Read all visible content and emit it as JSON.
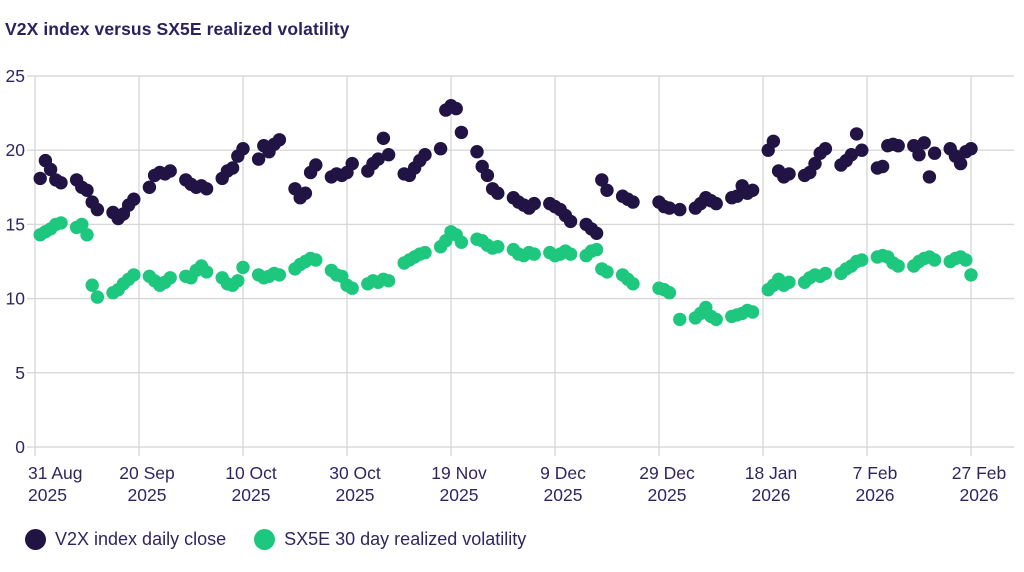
{
  "header": {
    "title": "V2X index versus SX5E realized volatility"
  },
  "legend": {
    "items": [
      {
        "label": "V2X index daily close",
        "color": "#211445"
      },
      {
        "label": "SX5E 30 day realized volatility",
        "color": "#1dc77d"
      }
    ]
  },
  "colors": {
    "background": "#ffffff",
    "text": "#2e2663",
    "grid": "#d8d8d8",
    "navy": "#211445",
    "green": "#1dc77d"
  },
  "chart_data": {
    "type": "scatter",
    "title": "V2X index versus SX5E realized volatility",
    "xlabel": "",
    "ylabel": "",
    "x_unit": "days since 31 Aug 2025 (points are trading days)",
    "ylim": [
      0,
      25
    ],
    "yticks": [
      0,
      5,
      10,
      15,
      20,
      25
    ],
    "grid": true,
    "legend_position": "bottom",
    "xticks": [
      {
        "day": 0,
        "line1": "31 Aug",
        "line2": "2025"
      },
      {
        "day": 20,
        "line1": "20 Sep",
        "line2": "2025"
      },
      {
        "day": 40,
        "line1": "10 Oct",
        "line2": "2025"
      },
      {
        "day": 60,
        "line1": "30 Oct",
        "line2": "2025"
      },
      {
        "day": 80,
        "line1": "19 Nov",
        "line2": "2025"
      },
      {
        "day": 100,
        "line1": "9 Dec",
        "line2": "2025"
      },
      {
        "day": 120,
        "line1": "29 Dec",
        "line2": "2025"
      },
      {
        "day": 140,
        "line1": "18 Jan",
        "line2": "2026"
      },
      {
        "day": 160,
        "line1": "7 Feb",
        "line2": "2026"
      },
      {
        "day": 180,
        "line1": "27 Feb",
        "line2": "2026"
      }
    ],
    "series": [
      {
        "name": "V2X index daily close",
        "color": "#211445",
        "points": [
          [
            1,
            18.1
          ],
          [
            2,
            19.3
          ],
          [
            3,
            18.7
          ],
          [
            4,
            18.0
          ],
          [
            5,
            17.8
          ],
          [
            8,
            18.0
          ],
          [
            9,
            17.5
          ],
          [
            10,
            17.3
          ],
          [
            11,
            16.5
          ],
          [
            12,
            16.0
          ],
          [
            15,
            15.8
          ],
          [
            16,
            15.4
          ],
          [
            17,
            15.7
          ],
          [
            18,
            16.3
          ],
          [
            19,
            16.7
          ],
          [
            22,
            17.5
          ],
          [
            23,
            18.3
          ],
          [
            24,
            18.5
          ],
          [
            25,
            18.4
          ],
          [
            26,
            18.6
          ],
          [
            29,
            18.0
          ],
          [
            30,
            17.7
          ],
          [
            31,
            17.5
          ],
          [
            32,
            17.6
          ],
          [
            33,
            17.4
          ],
          [
            36,
            18.1
          ],
          [
            37,
            18.6
          ],
          [
            38,
            18.8
          ],
          [
            39,
            19.6
          ],
          [
            40,
            20.1
          ],
          [
            43,
            19.4
          ],
          [
            44,
            20.3
          ],
          [
            45,
            19.9
          ],
          [
            46,
            20.4
          ],
          [
            47,
            20.7
          ],
          [
            50,
            17.4
          ],
          [
            51,
            16.8
          ],
          [
            52,
            17.1
          ],
          [
            53,
            18.5
          ],
          [
            54,
            19.0
          ],
          [
            57,
            18.2
          ],
          [
            58,
            18.4
          ],
          [
            59,
            18.3
          ],
          [
            60,
            18.5
          ],
          [
            61,
            19.1
          ],
          [
            64,
            18.6
          ],
          [
            65,
            19.1
          ],
          [
            66,
            19.4
          ],
          [
            67,
            20.8
          ],
          [
            68,
            19.7
          ],
          [
            71,
            18.4
          ],
          [
            72,
            18.3
          ],
          [
            73,
            18.8
          ],
          [
            74,
            19.3
          ],
          [
            75,
            19.7
          ],
          [
            78,
            20.1
          ],
          [
            79,
            22.7
          ],
          [
            80,
            23.0
          ],
          [
            81,
            22.8
          ],
          [
            82,
            21.2
          ],
          [
            85,
            19.9
          ],
          [
            86,
            18.9
          ],
          [
            87,
            18.3
          ],
          [
            88,
            17.4
          ],
          [
            89,
            17.1
          ],
          [
            92,
            16.8
          ],
          [
            93,
            16.5
          ],
          [
            94,
            16.3
          ],
          [
            95,
            16.1
          ],
          [
            96,
            16.4
          ],
          [
            99,
            16.4
          ],
          [
            100,
            16.2
          ],
          [
            101,
            16.0
          ],
          [
            102,
            15.6
          ],
          [
            103,
            15.2
          ],
          [
            106,
            15.0
          ],
          [
            107,
            14.7
          ],
          [
            108,
            14.4
          ],
          [
            109,
            18.0
          ],
          [
            110,
            17.3
          ],
          [
            113,
            16.9
          ],
          [
            114,
            16.7
          ],
          [
            115,
            16.5
          ],
          [
            120,
            16.5
          ],
          [
            121,
            16.2
          ],
          [
            122,
            16.1
          ],
          [
            124,
            16.0
          ],
          [
            127,
            16.1
          ],
          [
            128,
            16.4
          ],
          [
            129,
            16.8
          ],
          [
            130,
            16.6
          ],
          [
            131,
            16.4
          ],
          [
            134,
            16.8
          ],
          [
            135,
            16.9
          ],
          [
            136,
            17.6
          ],
          [
            137,
            17.1
          ],
          [
            138,
            17.3
          ],
          [
            141,
            20.0
          ],
          [
            142,
            20.6
          ],
          [
            143,
            18.6
          ],
          [
            144,
            18.2
          ],
          [
            145,
            18.4
          ],
          [
            148,
            18.3
          ],
          [
            149,
            18.5
          ],
          [
            150,
            19.1
          ],
          [
            151,
            19.8
          ],
          [
            152,
            20.1
          ],
          [
            155,
            19.0
          ],
          [
            156,
            19.3
          ],
          [
            157,
            19.7
          ],
          [
            158,
            21.1
          ],
          [
            159,
            20.0
          ],
          [
            162,
            18.8
          ],
          [
            163,
            18.9
          ],
          [
            164,
            20.3
          ],
          [
            165,
            20.4
          ],
          [
            166,
            20.3
          ],
          [
            169,
            20.3
          ],
          [
            170,
            19.7
          ],
          [
            171,
            20.5
          ],
          [
            172,
            18.2
          ],
          [
            173,
            19.8
          ],
          [
            176,
            20.1
          ],
          [
            177,
            19.6
          ],
          [
            178,
            19.1
          ],
          [
            179,
            19.9
          ],
          [
            180,
            20.1
          ]
        ]
      },
      {
        "name": "SX5E 30 day realized volatility",
        "color": "#1dc77d",
        "points": [
          [
            1,
            14.3
          ],
          [
            2,
            14.5
          ],
          [
            3,
            14.7
          ],
          [
            4,
            15.0
          ],
          [
            5,
            15.1
          ],
          [
            8,
            14.8
          ],
          [
            9,
            15.0
          ],
          [
            10,
            14.3
          ],
          [
            11,
            10.9
          ],
          [
            12,
            10.1
          ],
          [
            15,
            10.4
          ],
          [
            16,
            10.6
          ],
          [
            17,
            11.0
          ],
          [
            18,
            11.3
          ],
          [
            19,
            11.6
          ],
          [
            22,
            11.5
          ],
          [
            23,
            11.2
          ],
          [
            24,
            10.9
          ],
          [
            25,
            11.1
          ],
          [
            26,
            11.4
          ],
          [
            29,
            11.5
          ],
          [
            30,
            11.4
          ],
          [
            31,
            11.9
          ],
          [
            32,
            12.2
          ],
          [
            33,
            11.8
          ],
          [
            36,
            11.4
          ],
          [
            37,
            11.0
          ],
          [
            38,
            10.9
          ],
          [
            39,
            11.2
          ],
          [
            40,
            12.1
          ],
          [
            43,
            11.6
          ],
          [
            44,
            11.4
          ],
          [
            45,
            11.5
          ],
          [
            46,
            11.7
          ],
          [
            47,
            11.6
          ],
          [
            50,
            12.0
          ],
          [
            51,
            12.3
          ],
          [
            52,
            12.5
          ],
          [
            53,
            12.7
          ],
          [
            54,
            12.6
          ],
          [
            57,
            11.9
          ],
          [
            58,
            11.6
          ],
          [
            59,
            11.5
          ],
          [
            60,
            10.9
          ],
          [
            61,
            10.7
          ],
          [
            64,
            11.0
          ],
          [
            65,
            11.2
          ],
          [
            66,
            11.1
          ],
          [
            67,
            11.3
          ],
          [
            68,
            11.2
          ],
          [
            71,
            12.4
          ],
          [
            72,
            12.6
          ],
          [
            73,
            12.8
          ],
          [
            74,
            13.0
          ],
          [
            75,
            13.1
          ],
          [
            78,
            13.5
          ],
          [
            79,
            13.9
          ],
          [
            80,
            14.5
          ],
          [
            81,
            14.3
          ],
          [
            82,
            13.8
          ],
          [
            85,
            14.0
          ],
          [
            86,
            13.9
          ],
          [
            87,
            13.6
          ],
          [
            88,
            13.4
          ],
          [
            89,
            13.5
          ],
          [
            92,
            13.3
          ],
          [
            93,
            13.0
          ],
          [
            94,
            12.9
          ],
          [
            95,
            13.1
          ],
          [
            96,
            13.0
          ],
          [
            99,
            13.1
          ],
          [
            100,
            12.9
          ],
          [
            101,
            13.0
          ],
          [
            102,
            13.2
          ],
          [
            103,
            13.0
          ],
          [
            106,
            12.9
          ],
          [
            107,
            13.2
          ],
          [
            108,
            13.3
          ],
          [
            109,
            12.0
          ],
          [
            110,
            11.8
          ],
          [
            113,
            11.6
          ],
          [
            114,
            11.3
          ],
          [
            115,
            11.0
          ],
          [
            120,
            10.7
          ],
          [
            121,
            10.6
          ],
          [
            122,
            10.4
          ],
          [
            124,
            8.6
          ],
          [
            127,
            8.7
          ],
          [
            128,
            9.0
          ],
          [
            129,
            9.4
          ],
          [
            130,
            8.8
          ],
          [
            131,
            8.6
          ],
          [
            134,
            8.8
          ],
          [
            135,
            8.9
          ],
          [
            136,
            9.0
          ],
          [
            137,
            9.2
          ],
          [
            138,
            9.1
          ],
          [
            141,
            10.6
          ],
          [
            142,
            10.9
          ],
          [
            143,
            11.3
          ],
          [
            144,
            10.9
          ],
          [
            145,
            11.1
          ],
          [
            148,
            11.1
          ],
          [
            149,
            11.4
          ],
          [
            150,
            11.6
          ],
          [
            151,
            11.5
          ],
          [
            152,
            11.7
          ],
          [
            155,
            11.7
          ],
          [
            156,
            12.0
          ],
          [
            157,
            12.2
          ],
          [
            158,
            12.5
          ],
          [
            159,
            12.6
          ],
          [
            162,
            12.8
          ],
          [
            163,
            12.9
          ],
          [
            164,
            12.8
          ],
          [
            165,
            12.4
          ],
          [
            166,
            12.2
          ],
          [
            169,
            12.2
          ],
          [
            170,
            12.5
          ],
          [
            171,
            12.7
          ],
          [
            172,
            12.8
          ],
          [
            173,
            12.6
          ],
          [
            176,
            12.5
          ],
          [
            177,
            12.7
          ],
          [
            178,
            12.8
          ],
          [
            179,
            12.6
          ],
          [
            180,
            11.6
          ]
        ]
      }
    ]
  }
}
